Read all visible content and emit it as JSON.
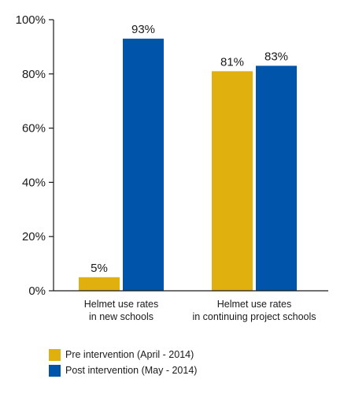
{
  "chart_data": {
    "type": "bar",
    "categories": [
      [
        "Helmet use rates",
        "in new schools"
      ],
      [
        "Helmet use rates",
        "in continuing project schools"
      ]
    ],
    "series": [
      {
        "name": "Pre intervention (April - 2014)",
        "values": [
          5,
          81
        ],
        "color": "#E0B00F"
      },
      {
        "name": "Post intervention (May - 2014)",
        "values": [
          93,
          83
        ],
        "color": "#0055AA"
      }
    ],
    "value_labels": [
      [
        "5%",
        "81%"
      ],
      [
        "93%",
        "83%"
      ]
    ],
    "y_ticks": [
      0,
      20,
      40,
      60,
      80,
      100
    ],
    "y_tick_labels": [
      "0%",
      "20%",
      "40%",
      "60%",
      "80%",
      "100%"
    ],
    "ylim": [
      0,
      100
    ],
    "title": "",
    "xlabel": "",
    "ylabel": "",
    "grid": false,
    "legend_position": "bottom-left"
  }
}
